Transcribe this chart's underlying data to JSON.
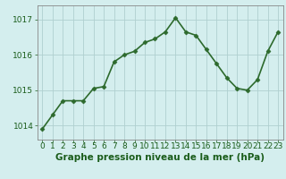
{
  "x": [
    0,
    1,
    2,
    3,
    4,
    5,
    6,
    7,
    8,
    9,
    10,
    11,
    12,
    13,
    14,
    15,
    16,
    17,
    18,
    19,
    20,
    21,
    22,
    23
  ],
  "y": [
    1013.9,
    1014.3,
    1014.7,
    1014.7,
    1014.7,
    1015.05,
    1015.1,
    1015.8,
    1016.0,
    1016.1,
    1016.35,
    1016.45,
    1016.65,
    1017.05,
    1016.65,
    1016.55,
    1016.15,
    1015.75,
    1015.35,
    1015.05,
    1015.0,
    1015.3,
    1016.1,
    1016.65
  ],
  "line_color": "#2d6a2d",
  "marker_color": "#2d6a2d",
  "bg_color": "#d4eeee",
  "grid_color": "#b0d0d0",
  "label_color": "#1a5c1a",
  "xlabel": "Graphe pression niveau de la mer (hPa)",
  "ylim_min": 1013.6,
  "ylim_max": 1017.4,
  "yticks": [
    1014,
    1015,
    1016,
    1017
  ],
  "xticks": [
    0,
    1,
    2,
    3,
    4,
    5,
    6,
    7,
    8,
    9,
    10,
    11,
    12,
    13,
    14,
    15,
    16,
    17,
    18,
    19,
    20,
    21,
    22,
    23
  ],
  "xlabel_fontsize": 7.5,
  "tick_fontsize": 6.5,
  "line_width": 1.2,
  "marker_size": 2.5
}
